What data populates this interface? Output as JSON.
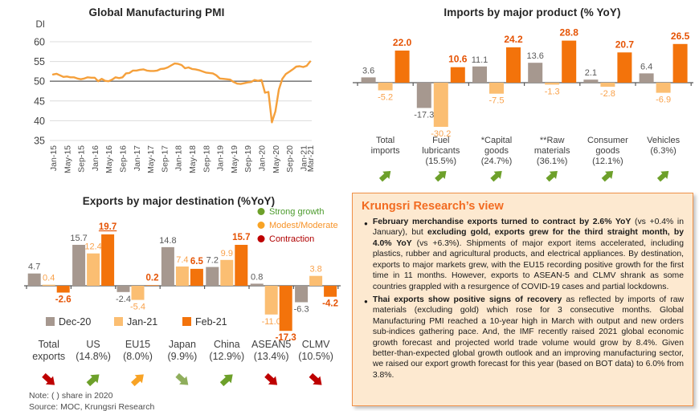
{
  "colors": {
    "title_text": "#262626",
    "axis_text": "#4D4D4D",
    "grid": "#DCDCDC",
    "reference_line": "#808080",
    "pmi_line": "#F5A03B",
    "bar_dec20": "#A6988F",
    "bar_jan21": "#FBBE72",
    "bar_feb21": "#F3730B",
    "label_dec20": "#595959",
    "label_jan21": "#F9A24B",
    "label_feb21": "#E55304",
    "green": "#6DA02A",
    "sage": "#8FAE5C",
    "amber": "#F8A325",
    "darkred": "#BE0000",
    "legend_green_text": "#4C9B2D",
    "legend_amber_text": "#F79328",
    "legend_red_text": "#B00000",
    "category_text": "#3F3F3F",
    "box_bg": "#FDE9D0",
    "box_border": "#F09148",
    "box_title": "#F26B21"
  },
  "chart_data": [
    {
      "type": "line",
      "title": "Global Manufacturing PMI",
      "ylabel": "DI",
      "ylim": [
        35,
        60
      ],
      "y_ticks": [
        60,
        55,
        50,
        45,
        40,
        35
      ],
      "reference_line": 50,
      "grid": true,
      "x_range": "monthly Jan-15 to Mar-21",
      "x_tick_labels": [
        "Jan-15",
        "May-15",
        "Sep-15",
        "Jan-16",
        "May-16",
        "Sep-16",
        "Jan-17",
        "May-17",
        "Sep-17",
        "Jan-18",
        "May-18",
        "Sep-18",
        "Jan-19",
        "May-19",
        "Sep-19",
        "Jan-20",
        "May-20",
        "Sep-20",
        "Jan-21",
        "Mar-21"
      ],
      "x_tick_indices": [
        0,
        4,
        8,
        12,
        16,
        20,
        24,
        28,
        32,
        36,
        40,
        44,
        48,
        52,
        56,
        60,
        64,
        68,
        72,
        74
      ],
      "values": [
        51.7,
        51.9,
        51.5,
        51.1,
        51.2,
        51.0,
        51.0,
        50.7,
        50.5,
        50.7,
        51.0,
        50.9,
        50.9,
        50.0,
        50.6,
        50.1,
        50.0,
        50.4,
        51.0,
        50.8,
        51.0,
        52.0,
        52.1,
        52.7,
        52.7,
        52.9,
        53.0,
        52.7,
        52.6,
        52.6,
        52.7,
        53.1,
        53.2,
        53.5,
        54.0,
        54.5,
        54.4,
        54.1,
        53.3,
        53.5,
        53.1,
        53.0,
        52.8,
        52.5,
        52.2,
        52.1,
        52.0,
        51.5,
        50.7,
        50.6,
        50.5,
        50.4,
        49.8,
        49.4,
        49.3,
        49.5,
        49.7,
        49.8,
        50.3,
        50.1,
        50.3,
        47.1,
        47.3,
        39.6,
        42.4,
        47.9,
        50.6,
        51.8,
        52.4,
        53.0,
        53.7,
        53.8,
        53.6,
        53.9,
        55.0
      ]
    },
    {
      "type": "bar",
      "title": "Imports by major product (% YoY)",
      "categories": [
        {
          "lines": [
            "Total",
            "imports"
          ]
        },
        {
          "lines": [
            "Fuel",
            "lubricants",
            "(15.5%)"
          ]
        },
        {
          "lines": [
            "*Capital",
            "goods",
            "(24.7%)"
          ]
        },
        {
          "lines": [
            "**Raw",
            "materials",
            "(36.1%)"
          ]
        },
        {
          "lines": [
            "Consumer",
            "goods",
            "(12.1%)"
          ]
        },
        {
          "lines": [
            "Vehicles",
            "(6.3%)"
          ]
        }
      ],
      "series": [
        {
          "name": "Dec-20",
          "values": [
            3.6,
            -17.3,
            11.1,
            13.6,
            2.1,
            6.4
          ]
        },
        {
          "name": "Jan-21",
          "values": [
            -5.2,
            -30.2,
            -7.5,
            -1.3,
            -2.8,
            -6.9
          ]
        },
        {
          "name": "Feb-21",
          "values": [
            22.0,
            10.6,
            24.2,
            28.8,
            20.7,
            26.5
          ]
        }
      ],
      "arrows": [
        {
          "dir": "ne",
          "color": "green"
        },
        {
          "dir": "ne",
          "color": "green"
        },
        {
          "dir": "ne",
          "color": "green"
        },
        {
          "dir": "ne",
          "color": "green"
        },
        {
          "dir": "ne",
          "color": "green"
        },
        {
          "dir": "ne",
          "color": "green"
        }
      ]
    },
    {
      "type": "bar",
      "title": "Exports by major destination (%YoY)",
      "categories": [
        {
          "lines": [
            "Total",
            "exports"
          ]
        },
        {
          "lines": [
            "US",
            "(14.8%)"
          ]
        },
        {
          "lines": [
            "EU15",
            "(8.0%)"
          ]
        },
        {
          "lines": [
            "Japan",
            "(9.9%)"
          ]
        },
        {
          "lines": [
            "China",
            "(12.9%)"
          ]
        },
        {
          "lines": [
            "ASEAN5",
            "(13.4%)"
          ]
        },
        {
          "lines": [
            "CLMV",
            "(10.5%)"
          ]
        }
      ],
      "series": [
        {
          "name": "Dec-20",
          "values": [
            4.7,
            15.7,
            -2.4,
            14.8,
            7.2,
            0.8,
            -6.3
          ]
        },
        {
          "name": "Jan-21",
          "values": [
            0.4,
            12.4,
            -5.4,
            7.4,
            9.9,
            -11.0,
            3.8
          ]
        },
        {
          "name": "Feb-21",
          "values": [
            -2.6,
            19.7,
            0.2,
            6.5,
            15.7,
            -17.3,
            -4.2
          ],
          "underline": [
            1
          ]
        }
      ],
      "status_legend": [
        {
          "label": "Strong growth",
          "dot": "green",
          "text_color": "legend_green_text"
        },
        {
          "label": "Modest/Moderate",
          "dot": "amber",
          "text_color": "legend_amber_text"
        },
        {
          "label": "Contraction",
          "dot": "darkred",
          "text_color": "legend_red_text"
        }
      ],
      "arrows": [
        {
          "dir": "se",
          "color": "darkred"
        },
        {
          "dir": "ne",
          "color": "green"
        },
        {
          "dir": "ne",
          "color": "amber"
        },
        {
          "dir": "se",
          "color": "sage"
        },
        {
          "dir": "ne",
          "color": "green"
        },
        {
          "dir": "se",
          "color": "darkred"
        },
        {
          "dir": "se",
          "color": "darkred"
        }
      ],
      "note": "Note: (  ) share in 2020",
      "source": "Source: MOC, Krungsri Research"
    }
  ],
  "view": {
    "title": "Krungsri Research’s view",
    "bullets": [
      [
        {
          "b": 1,
          "t": "February merchandise exports turned to contract by 2.6% YoY"
        },
        {
          "b": 0,
          "t": " (vs +0.4% in January), but "
        },
        {
          "b": 1,
          "t": "excluding gold, exports grew for the third straight month, by 4.0% YoY"
        },
        {
          "b": 0,
          "t": " (vs +6.3%). Shipments of major export items accelerated, including plastics, rubber and agricultural products, and electrical appliances. By destination, exports to major markets grew, with the EU15 recording positive growth for the first time in 11 months. However, exports to ASEAN-5 and CLMV shrank as some countries grappled with a resurgence of COVID-19 cases and partial lockdowns."
        }
      ],
      [
        {
          "b": 1,
          "t": "Thai exports show positive signs of recovery"
        },
        {
          "b": 0,
          "t": " as reflected by imports of raw materials (excluding gold) which rose for 3 consecutive months. Global Manufacturing PMI reached a 10-year high in March with output and new orders sub-indices gathering pace. And, the IMF recently raised 2021 global economic growth forecast and projected world trade volume would grow by 8.4%. Given better-than-expected global growth outlook and an improving manufacturing sector, we raised our export growth forecast for this year (based on BOT data) to 6.0% from 3.8%."
        }
      ]
    ]
  }
}
